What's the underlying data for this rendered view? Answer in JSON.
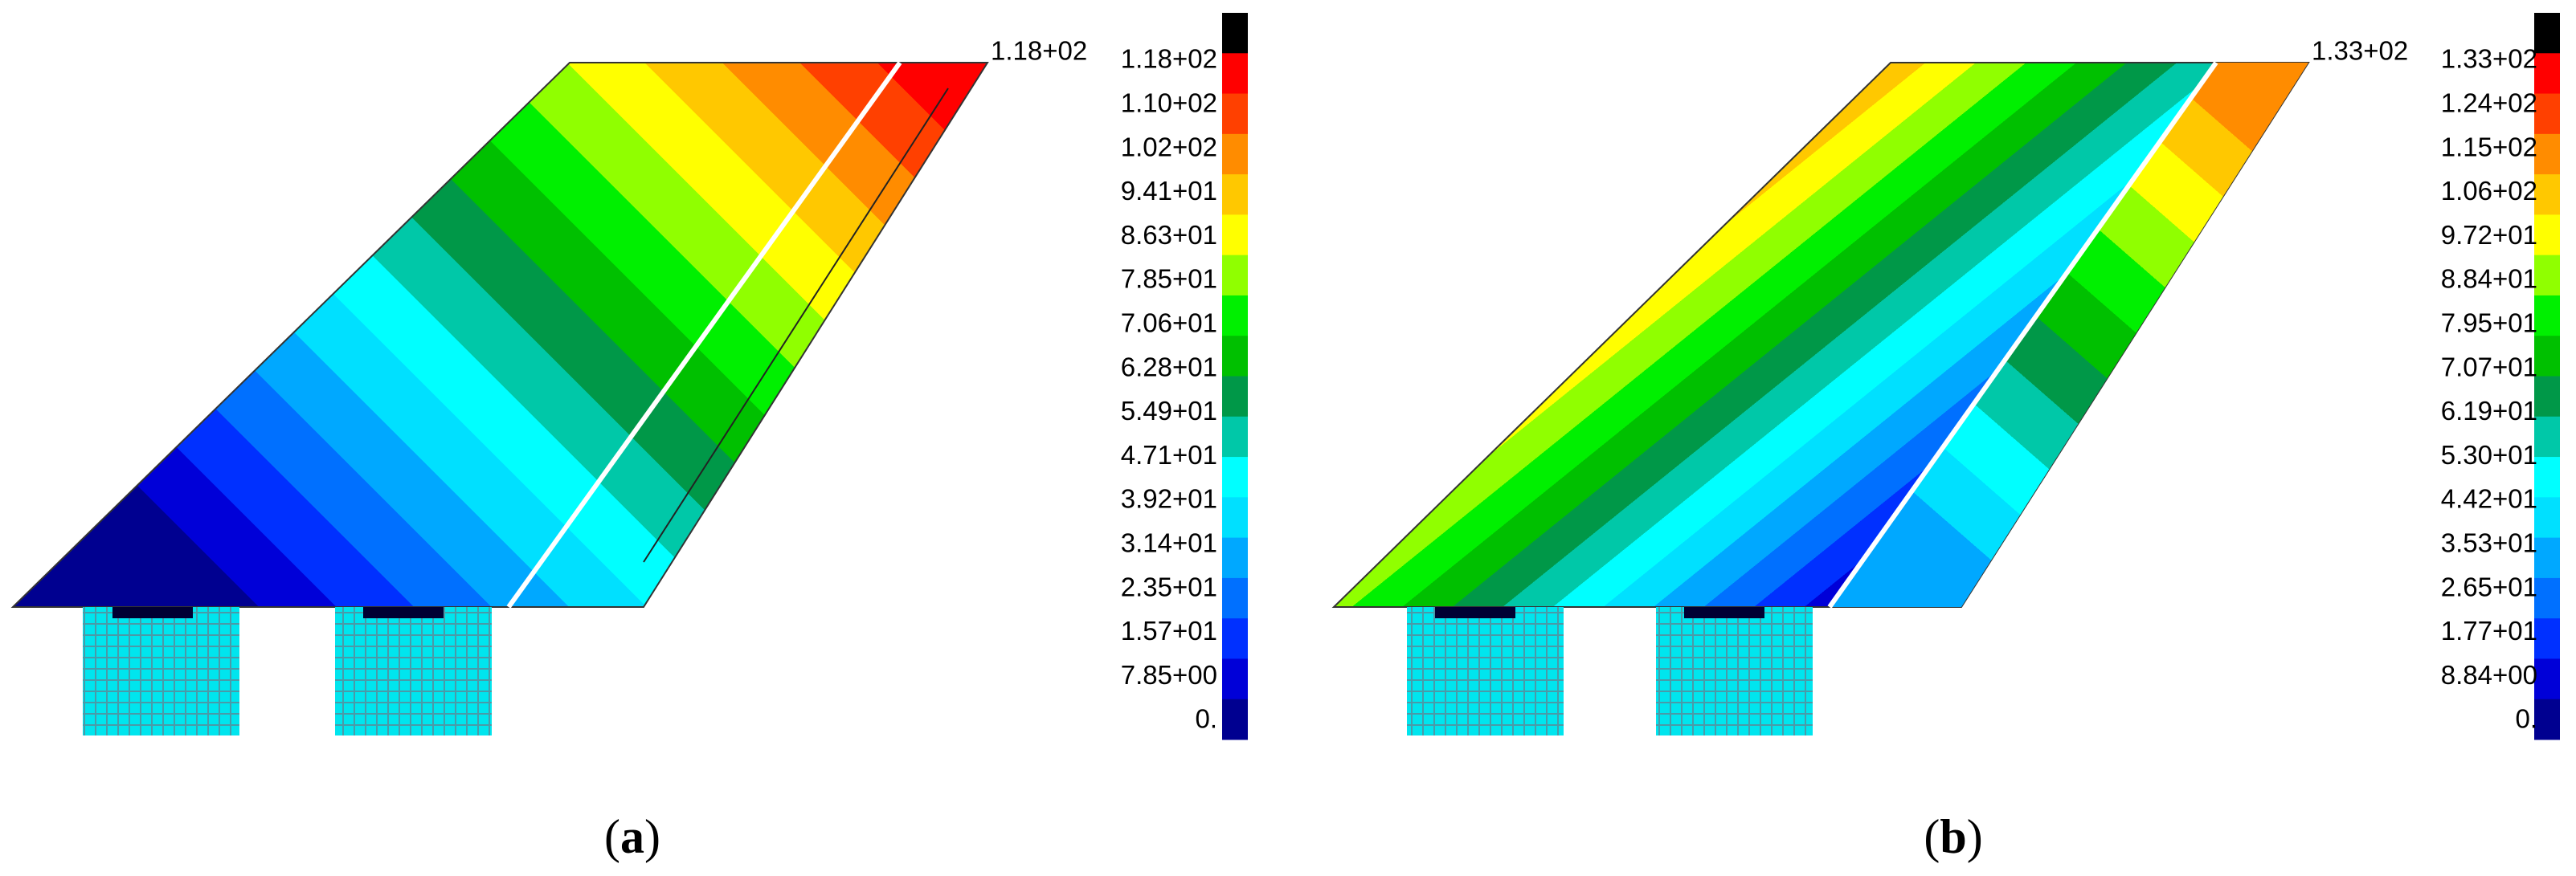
{
  "panels": [
    {
      "max_label": "1.18+02",
      "legend": [
        "1.18+02",
        "1.10+02",
        "1.02+02",
        "9.41+01",
        "8.63+01",
        "7.85+01",
        "7.06+01",
        "6.28+01",
        "5.49+01",
        "4.71+01",
        "3.92+01",
        "3.14+01",
        "2.35+01",
        "1.57+01",
        "7.85+00",
        "0."
      ],
      "caption_open": "(",
      "caption_letter": "a",
      "caption_close": ")"
    },
    {
      "max_label": "1.33+02",
      "legend": [
        "1.33+02",
        "1.24+02",
        "1.15+02",
        "1.06+02",
        "9.72+01",
        "8.84+01",
        "7.95+01",
        "7.07+01",
        "6.19+01",
        "5.30+01",
        "4.42+01",
        "3.53+01",
        "2.65+01",
        "1.77+01",
        "8.84+00",
        "0."
      ],
      "caption_open": "(",
      "caption_letter": "b",
      "caption_close": ")"
    }
  ]
}
